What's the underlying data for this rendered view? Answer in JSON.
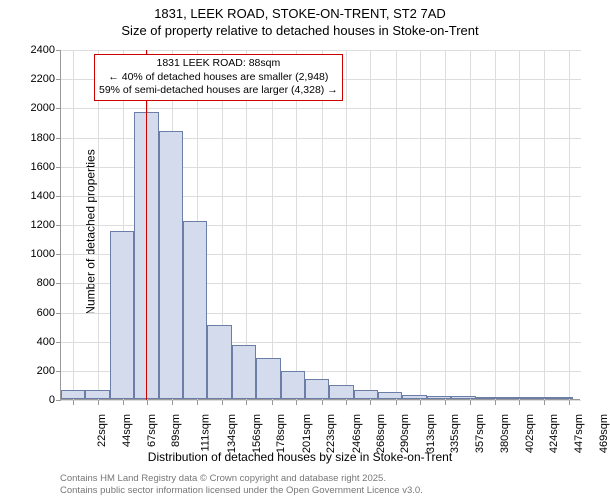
{
  "title_main": "1831, LEEK ROAD, STOKE-ON-TRENT, ST2 7AD",
  "title_sub": "Size of property relative to detached houses in Stoke-on-Trent",
  "y_axis_title": "Number of detached properties",
  "x_axis_title": "Distribution of detached houses by size in Stoke-on-Trent",
  "chart": {
    "type": "histogram",
    "xlim": [
      11,
      480
    ],
    "ylim": [
      0,
      2400
    ],
    "ytick_step": 200,
    "y_ticks": [
      0,
      200,
      400,
      600,
      800,
      1000,
      1200,
      1400,
      1600,
      1800,
      2000,
      2200,
      2400
    ],
    "x_ticks": [
      22,
      44,
      67,
      89,
      111,
      134,
      156,
      178,
      201,
      223,
      246,
      268,
      290,
      313,
      335,
      357,
      380,
      402,
      424,
      447,
      469
    ],
    "x_tick_suffix": "sqm",
    "bar_color": "#d3dbed",
    "bar_border_color": "#6a7ea8",
    "background_color": "#ffffff",
    "grid_color": "#dddddd",
    "marker_color": "#cc0000",
    "marker_value": 88,
    "bars": [
      {
        "x_start": 11,
        "x_end": 33,
        "value": 60
      },
      {
        "x_start": 33,
        "x_end": 55,
        "value": 60
      },
      {
        "x_start": 55,
        "x_end": 77,
        "value": 1150
      },
      {
        "x_start": 77,
        "x_end": 99,
        "value": 1970
      },
      {
        "x_start": 99,
        "x_end": 121,
        "value": 1840
      },
      {
        "x_start": 121,
        "x_end": 143,
        "value": 1220
      },
      {
        "x_start": 143,
        "x_end": 165,
        "value": 510
      },
      {
        "x_start": 165,
        "x_end": 187,
        "value": 370
      },
      {
        "x_start": 187,
        "x_end": 209,
        "value": 280
      },
      {
        "x_start": 209,
        "x_end": 231,
        "value": 195
      },
      {
        "x_start": 231,
        "x_end": 253,
        "value": 135
      },
      {
        "x_start": 253,
        "x_end": 275,
        "value": 95
      },
      {
        "x_start": 275,
        "x_end": 297,
        "value": 60
      },
      {
        "x_start": 297,
        "x_end": 319,
        "value": 50
      },
      {
        "x_start": 319,
        "x_end": 341,
        "value": 25
      },
      {
        "x_start": 341,
        "x_end": 363,
        "value": 20
      },
      {
        "x_start": 363,
        "x_end": 385,
        "value": 18
      },
      {
        "x_start": 385,
        "x_end": 407,
        "value": 8
      },
      {
        "x_start": 407,
        "x_end": 429,
        "value": 6
      },
      {
        "x_start": 429,
        "x_end": 451,
        "value": 5
      },
      {
        "x_start": 451,
        "x_end": 473,
        "value": 8
      }
    ],
    "annotation": {
      "line1": "1831 LEEK ROAD: 88sqm",
      "line2": "← 40% of detached houses are smaller (2,948)",
      "line3": "59% of semi-detached houses are larger (4,328) →",
      "border_color": "#cc0000"
    },
    "title_fontsize": 13,
    "axis_label_fontsize": 12,
    "tick_fontsize": 11
  },
  "footer": {
    "line1": "Contains HM Land Registry data © Crown copyright and database right 2025.",
    "line2": "Contains public sector information licensed under the Open Government Licence v3.0."
  }
}
